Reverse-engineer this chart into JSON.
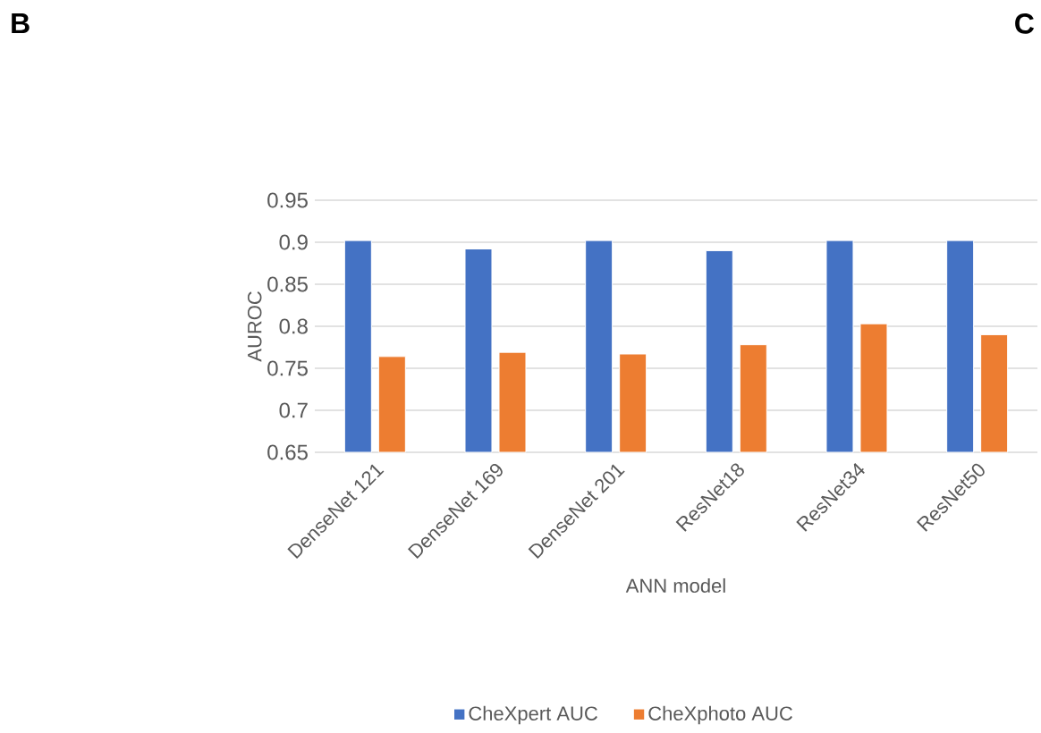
{
  "chart_data": {
    "type": "bar",
    "categories": [
      "DenseNet 121",
      "DenseNet 169",
      "DenseNet 201",
      "ResNet18",
      "ResNet34",
      "ResNet50"
    ],
    "series": [
      {
        "name": "CheXpert AUC",
        "color": "#4472c4",
        "values": [
          0.902,
          0.892,
          0.902,
          0.89,
          0.902,
          0.902
        ]
      },
      {
        "name": "CheXphoto AUC",
        "color": "#ed7d31",
        "values": [
          0.764,
          0.769,
          0.767,
          0.778,
          0.803,
          0.79
        ]
      }
    ],
    "xlabel": "ANN model",
    "ylabel": "AUROC",
    "ylim": [
      0.65,
      0.95
    ],
    "yticks": [
      0.65,
      0.7,
      0.75,
      0.8,
      0.85,
      0.9,
      0.95
    ],
    "grid": "y",
    "legend": "bottom",
    "annotations": [
      "B",
      "C"
    ]
  }
}
